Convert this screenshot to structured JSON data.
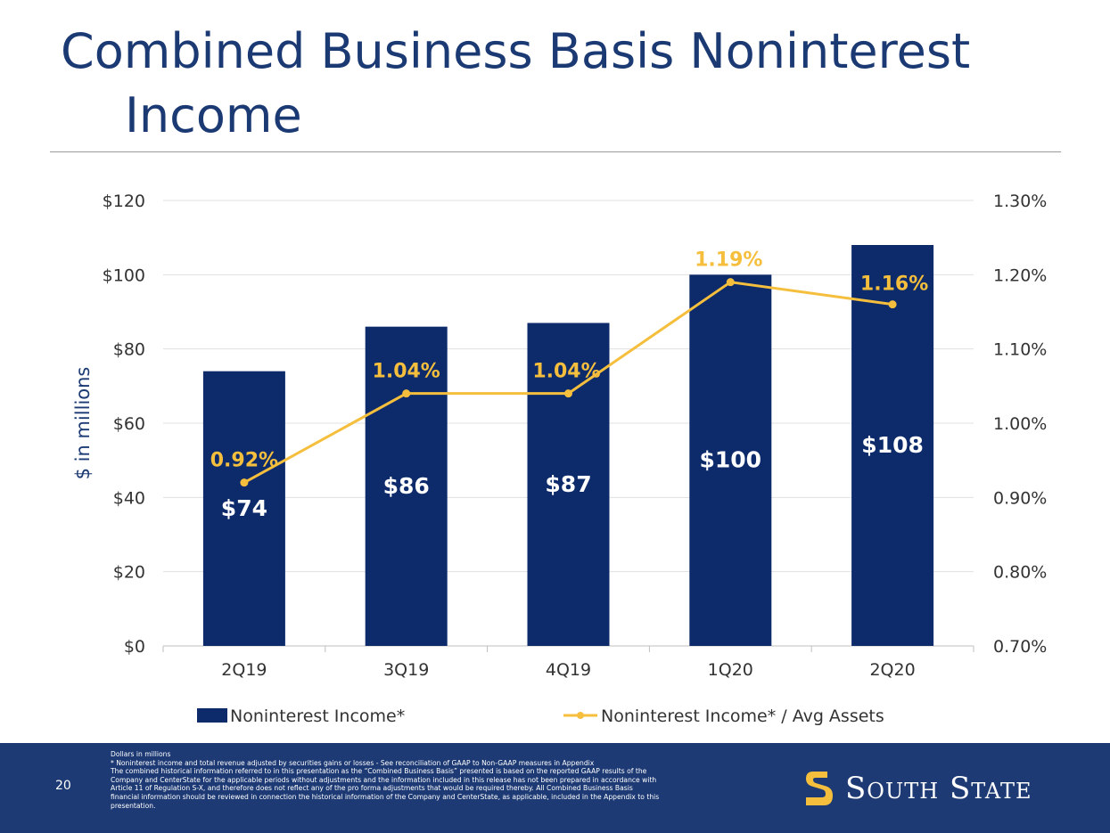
{
  "title": {
    "line1": "Combined Business Basis Noninterest",
    "line2": "Income"
  },
  "chart_data": {
    "type": "bar",
    "categories": [
      "2Q19",
      "3Q19",
      "4Q19",
      "1Q20",
      "2Q20"
    ],
    "series": [
      {
        "name": "Noninterest Income*",
        "type": "bar",
        "axis": "left",
        "values": [
          74,
          86,
          87,
          100,
          108
        ],
        "labels": [
          "$74",
          "$86",
          "$87",
          "$100",
          "$108"
        ]
      },
      {
        "name": "Noninterest Income* / Avg Assets",
        "type": "line",
        "axis": "right",
        "values": [
          0.92,
          1.04,
          1.04,
          1.19,
          1.16
        ],
        "labels": [
          "0.92%",
          "1.04%",
          "1.04%",
          "1.19%",
          "1.16%"
        ]
      }
    ],
    "ylabel": "$ in millions",
    "ylim": [
      0,
      120
    ],
    "y_ticks": [
      "$0",
      "$20",
      "$40",
      "$60",
      "$80",
      "$100",
      "$120"
    ],
    "y2lim": [
      0.7,
      1.3
    ],
    "y2_ticks": [
      "0.70%",
      "0.80%",
      "0.90%",
      "1.00%",
      "1.10%",
      "1.20%",
      "1.30%"
    ],
    "grid": true,
    "legend": "bottom",
    "colors": {
      "bar": "#0d2b6b",
      "line": "#f5bf3d",
      "bar_label": "#ffffff",
      "line_label": "#f5bf3d"
    }
  },
  "footer": {
    "page_number": "20",
    "notes": [
      "Dollars in millions",
      "* Noninterest income and total revenue adjusted by securities gains or losses - See reconciliation of GAAP to Non-GAAP measures in Appendix",
      "The combined historical information referred to in this presentation as the “Combined Business Basis” presented is based on the reported GAAP results of the",
      "Company and CenterState for the applicable periods without adjustments and the information included in this release has not been prepared in accordance with",
      "Article 11 of Regulation S-X, and therefore does not reflect any of the pro forma adjustments that would be required thereby.  All Combined Business Basis",
      "financial information should be reviewed in connection the historical information of the Company and CenterState, as applicable, included in the Appendix to this",
      "presentation."
    ],
    "logo_text": "South State",
    "logo_icon": "south-state-s-icon"
  }
}
